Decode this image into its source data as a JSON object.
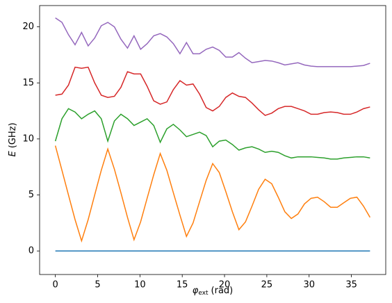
{
  "chart_data": {
    "type": "line",
    "xlabel": {
      "symbol": "φ",
      "subscript": "ext",
      "unit": "(rad)"
    },
    "ylabel": {
      "symbol": "E",
      "unit": "(GHz)"
    },
    "x": [
      0,
      0.78,
      1.55,
      2.33,
      3.1,
      3.88,
      4.65,
      5.43,
      6.2,
      6.98,
      7.75,
      8.53,
      9.3,
      10.08,
      10.85,
      11.63,
      12.4,
      13.18,
      13.95,
      14.73,
      15.5,
      16.28,
      17.05,
      17.83,
      18.6,
      19.38,
      20.15,
      20.93,
      21.7,
      22.48,
      23.25,
      24.03,
      24.8,
      25.58,
      26.35,
      27.13,
      27.9,
      28.68,
      29.45,
      30.23,
      31,
      31.78,
      32.55,
      33.33,
      34.1,
      34.88,
      35.65,
      36.43,
      37.2
    ],
    "series": [
      {
        "color": "#1f77b4",
        "values": [
          0,
          0,
          0,
          0,
          0,
          0,
          0,
          0,
          0,
          0,
          0,
          0,
          0,
          0,
          0,
          0,
          0,
          0,
          0,
          0,
          0,
          0,
          0,
          0,
          0,
          0,
          0,
          0,
          0,
          0,
          0,
          0,
          0,
          0,
          0,
          0,
          0,
          0,
          0,
          0,
          0,
          0,
          0,
          0,
          0,
          0,
          0,
          0,
          0
        ]
      },
      {
        "color": "#ff7f0e",
        "values": [
          9.4,
          7.2,
          5.0,
          2.8,
          0.9,
          2.8,
          5.0,
          7.2,
          9.1,
          7.3,
          5.2,
          3.0,
          1.0,
          2.6,
          4.7,
          6.8,
          8.7,
          7.2,
          5.2,
          3.2,
          1.3,
          2.5,
          4.4,
          6.3,
          7.8,
          7.0,
          5.3,
          3.5,
          1.9,
          2.6,
          4.0,
          5.5,
          6.4,
          6.0,
          4.8,
          3.5,
          2.9,
          3.3,
          4.2,
          4.7,
          4.8,
          4.4,
          3.9,
          3.9,
          4.3,
          4.7,
          4.8,
          4.0,
          3.0
        ]
      },
      {
        "color": "#2ca02c",
        "values": [
          9.8,
          11.8,
          12.7,
          12.4,
          11.8,
          12.2,
          12.5,
          11.8,
          9.8,
          11.6,
          12.2,
          11.8,
          11.2,
          11.5,
          11.8,
          11.2,
          9.7,
          10.9,
          11.3,
          10.8,
          10.2,
          10.4,
          10.6,
          10.3,
          9.3,
          9.8,
          9.9,
          9.5,
          9.0,
          9.2,
          9.3,
          9.1,
          8.8,
          8.9,
          8.8,
          8.5,
          8.3,
          8.4,
          8.4,
          8.4,
          8.35,
          8.3,
          8.2,
          8.2,
          8.3,
          8.35,
          8.4,
          8.4,
          8.3
        ]
      },
      {
        "color": "#d62728",
        "values": [
          13.9,
          14.0,
          14.8,
          16.4,
          16.3,
          16.4,
          15.0,
          13.9,
          13.7,
          13.8,
          14.6,
          16.0,
          15.8,
          15.8,
          14.7,
          13.4,
          13.1,
          13.3,
          14.4,
          15.2,
          14.8,
          14.9,
          14.0,
          12.8,
          12.5,
          12.9,
          13.7,
          14.1,
          13.8,
          13.7,
          13.2,
          12.6,
          12.1,
          12.3,
          12.7,
          12.9,
          12.9,
          12.7,
          12.5,
          12.2,
          12.2,
          12.35,
          12.4,
          12.35,
          12.2,
          12.2,
          12.4,
          12.7,
          12.85
        ]
      },
      {
        "color": "#9467bd",
        "values": [
          20.8,
          20.4,
          19.3,
          18.4,
          19.5,
          18.3,
          19.0,
          20.1,
          20.4,
          20.0,
          18.9,
          18.1,
          19.2,
          18.0,
          18.5,
          19.2,
          19.4,
          19.1,
          18.5,
          17.6,
          18.6,
          17.6,
          17.6,
          18.0,
          18.2,
          17.9,
          17.3,
          17.3,
          17.7,
          17.2,
          16.8,
          16.9,
          17.0,
          16.95,
          16.8,
          16.6,
          16.7,
          16.8,
          16.6,
          16.5,
          16.45,
          16.45,
          16.45,
          16.45,
          16.45,
          16.45,
          16.5,
          16.55,
          16.75
        ]
      }
    ],
    "xlim": [
      -1.86,
      39.06
    ],
    "ylim": [
      -2.1,
      21.9
    ],
    "xticks": [
      0,
      5,
      10,
      15,
      20,
      25,
      30,
      35
    ],
    "yticks": [
      0,
      5,
      10,
      15,
      20
    ]
  }
}
